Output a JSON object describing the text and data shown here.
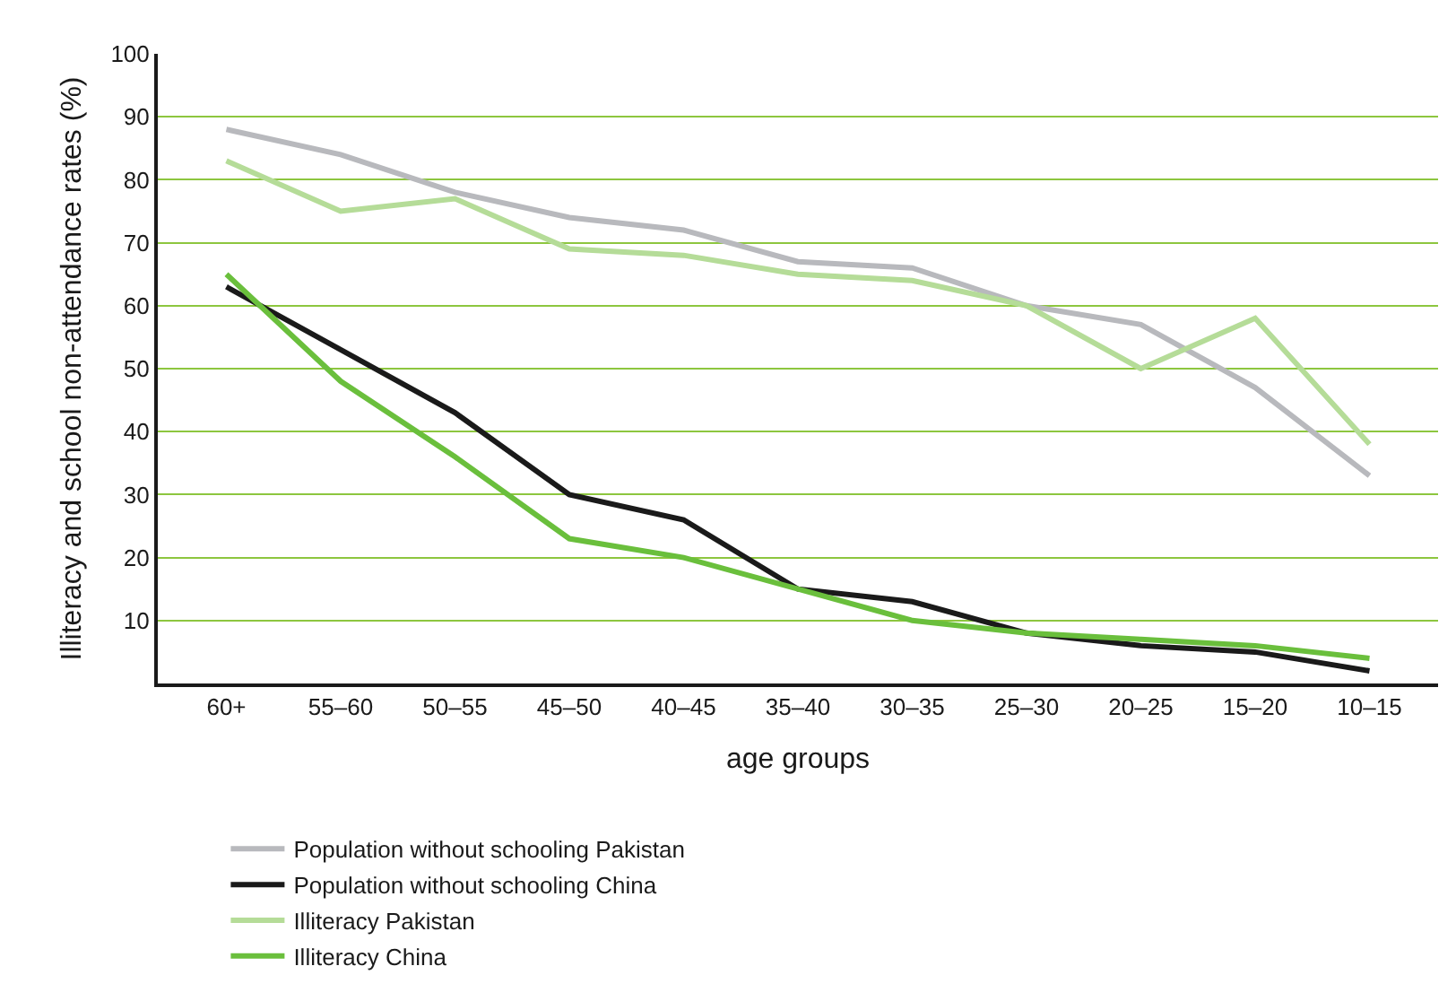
{
  "chart_data": {
    "type": "line",
    "xlabel": "age groups",
    "ylabel": "Illiteracy and school non-attendance rates (%)",
    "categories": [
      "60+",
      "55–60",
      "50–55",
      "45–50",
      "40–45",
      "35–40",
      "30–35",
      "25–30",
      "20–25",
      "15–20",
      "10–15"
    ],
    "series": [
      {
        "name": "Population without schooling Pakistan",
        "color": "#b8b9bd",
        "values": [
          88,
          84,
          78,
          74,
          72,
          67,
          66,
          60,
          57,
          47,
          33
        ]
      },
      {
        "name": "Population without schooling China",
        "color": "#1a1a1a",
        "values": [
          63,
          53,
          43,
          30,
          26,
          15,
          13,
          8,
          6,
          5,
          2
        ]
      },
      {
        "name": "Illiteracy Pakistan",
        "color": "#b5dc98",
        "values": [
          83,
          75,
          77,
          69,
          68,
          65,
          64,
          60,
          50,
          58,
          38
        ]
      },
      {
        "name": "Illiteracy China",
        "color": "#6abf3c",
        "values": [
          65,
          48,
          36,
          23,
          20,
          15,
          10,
          8,
          7,
          6,
          4
        ]
      }
    ],
    "ylim": [
      0,
      100
    ],
    "yticks": [
      10,
      20,
      30,
      40,
      50,
      60,
      70,
      80,
      90,
      100
    ],
    "grid": "y",
    "legend": "bottom",
    "marker": "none",
    "line_style": "solid"
  }
}
